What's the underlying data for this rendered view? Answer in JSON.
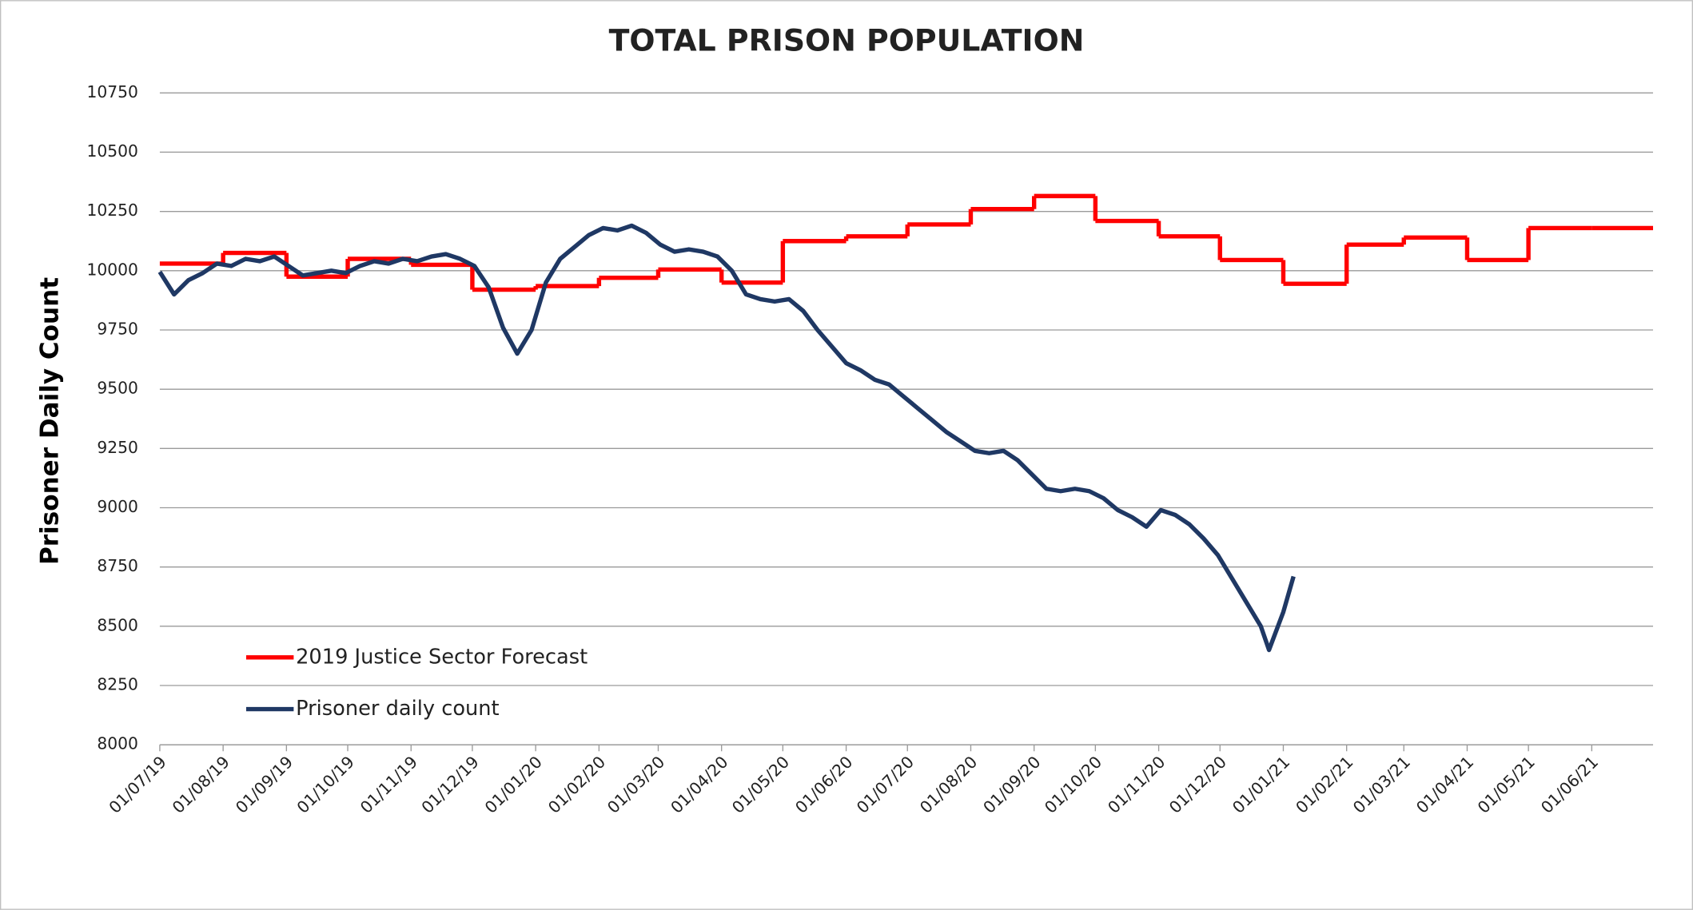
{
  "chart_data": {
    "type": "line",
    "title": "TOTAL PRISON POPULATION",
    "y_label": "Prisoner  Daily Count",
    "ylim": [
      8000,
      10750
    ],
    "yticks": [
      8000,
      8250,
      8500,
      8750,
      9000,
      9250,
      9500,
      9750,
      10000,
      10250,
      10500,
      10750
    ],
    "xlim": [
      "01/07/19",
      "01/07/21"
    ],
    "xticks": [
      "01/07/19",
      "01/08/19",
      "01/09/19",
      "01/10/19",
      "01/11/19",
      "01/12/19",
      "01/01/20",
      "01/02/20",
      "01/03/20",
      "01/04/20",
      "01/05/20",
      "01/06/20",
      "01/07/20",
      "01/08/20",
      "01/09/20",
      "01/10/20",
      "01/11/20",
      "01/12/20",
      "01/01/21",
      "01/02/21",
      "01/03/21",
      "01/04/21",
      "01/05/21",
      "01/06/21"
    ],
    "grid": true,
    "legend": "lower left",
    "series": [
      {
        "name": "2019 Justice Sector Forecast",
        "color": "#ff0000",
        "step": true,
        "x": [
          "01/07/19",
          "01/08/19",
          "01/09/19",
          "01/10/19",
          "01/11/19",
          "01/12/19",
          "01/01/20",
          "01/02/20",
          "01/03/20",
          "01/04/20",
          "01/05/20",
          "01/06/20",
          "01/07/20",
          "01/08/20",
          "01/09/20",
          "01/10/20",
          "01/11/20",
          "01/12/20",
          "01/01/21",
          "01/02/21",
          "01/03/21",
          "01/04/21",
          "01/05/21",
          "01/06/21"
        ],
        "values": [
          10030,
          10075,
          9975,
          10050,
          10025,
          9920,
          9935,
          9970,
          10005,
          9950,
          10125,
          10145,
          10195,
          10260,
          10315,
          10210,
          10145,
          10045,
          9945,
          10110,
          10140,
          10045,
          10180,
          10180
        ]
      },
      {
        "name": "Prisoner daily count",
        "color": "#1f3864",
        "step": false,
        "x": [
          "01/07/19",
          "08/07/19",
          "15/07/19",
          "22/07/19",
          "29/07/19",
          "05/08/19",
          "12/08/19",
          "19/08/19",
          "26/08/19",
          "02/09/19",
          "09/09/19",
          "16/09/19",
          "23/09/19",
          "30/09/19",
          "07/10/19",
          "14/10/19",
          "21/10/19",
          "28/10/19",
          "04/11/19",
          "11/11/19",
          "18/11/19",
          "25/11/19",
          "02/12/19",
          "09/12/19",
          "16/12/19",
          "23/12/19",
          "30/12/19",
          "06/01/20",
          "13/01/20",
          "20/01/20",
          "27/01/20",
          "03/02/20",
          "10/02/20",
          "17/02/20",
          "24/02/20",
          "02/03/20",
          "09/03/20",
          "16/03/20",
          "23/03/20",
          "30/03/20",
          "06/04/20",
          "13/04/20",
          "20/04/20",
          "27/04/20",
          "04/05/20",
          "11/05/20",
          "18/05/20",
          "25/05/20",
          "01/06/20",
          "08/06/20",
          "15/06/20",
          "22/06/20",
          "29/06/20",
          "06/07/20",
          "13/07/20",
          "20/07/20",
          "27/07/20",
          "03/08/20",
          "10/08/20",
          "17/08/20",
          "24/08/20",
          "31/08/20",
          "07/09/20",
          "14/09/20",
          "21/09/20",
          "28/09/20",
          "05/10/20",
          "12/10/20",
          "19/10/20",
          "26/10/20",
          "02/11/20",
          "09/11/20",
          "16/11/20",
          "23/11/20",
          "30/11/20",
          "07/12/20",
          "14/12/20",
          "21/12/20",
          "25/12/20",
          "01/01/21",
          "06/01/21"
        ],
        "values": [
          9995,
          9900,
          9960,
          9990,
          10030,
          10020,
          10050,
          10040,
          10060,
          10020,
          9980,
          9990,
          10000,
          9990,
          10020,
          10040,
          10030,
          10050,
          10040,
          10060,
          10070,
          10050,
          10020,
          9930,
          9760,
          9650,
          9750,
          9950,
          10050,
          10100,
          10150,
          10180,
          10170,
          10190,
          10160,
          10110,
          10080,
          10090,
          10080,
          10060,
          10000,
          9900,
          9880,
          9870,
          9880,
          9830,
          9750,
          9680,
          9610,
          9580,
          9540,
          9520,
          9470,
          9420,
          9370,
          9320,
          9280,
          9240,
          9230,
          9240,
          9200,
          9140,
          9080,
          9070,
          9080,
          9070,
          9040,
          8990,
          8960,
          8920,
          8990,
          8970,
          8930,
          8870,
          8800,
          8700,
          8600,
          8500,
          8400,
          8560,
          8710
        ]
      }
    ]
  }
}
